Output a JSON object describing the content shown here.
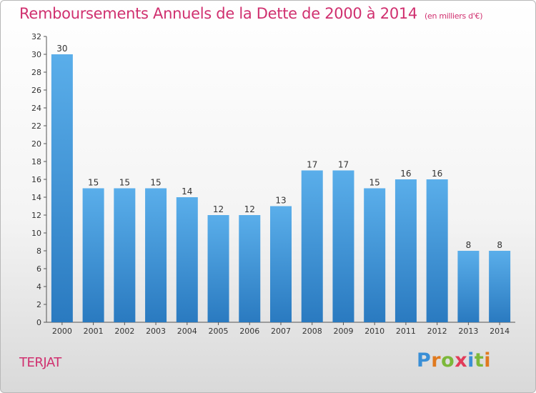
{
  "header": {
    "title": "Remboursements Annuels de la Dette de 2000 à 2014",
    "unit": "(en milliers d'€)"
  },
  "footer": {
    "commune": "TERJAT",
    "brand": {
      "letters": [
        "P",
        "r",
        "o",
        "x",
        "i",
        "t",
        "i"
      ],
      "colors": [
        "#3a8fd6",
        "#e07a1f",
        "#7cb83a",
        "#e23c5a",
        "#3a8fd6",
        "#7cb83a",
        "#e07a1f"
      ]
    }
  },
  "chart_data": {
    "type": "bar",
    "categories": [
      "2000",
      "2001",
      "2002",
      "2003",
      "2004",
      "2005",
      "2006",
      "2007",
      "2008",
      "2009",
      "2010",
      "2011",
      "2012",
      "2013",
      "2014"
    ],
    "values": [
      30,
      15,
      15,
      15,
      14,
      12,
      12,
      13,
      17,
      17,
      15,
      16,
      16,
      8,
      8
    ],
    "ylim": [
      0,
      32
    ],
    "yticks": [
      0,
      2,
      4,
      6,
      8,
      10,
      12,
      14,
      16,
      18,
      20,
      22,
      24,
      26,
      28,
      30,
      32
    ],
    "grid": false,
    "legend": "none",
    "bar_color_top": "#5aaeea",
    "bar_color_bottom": "#2a7ac0"
  }
}
